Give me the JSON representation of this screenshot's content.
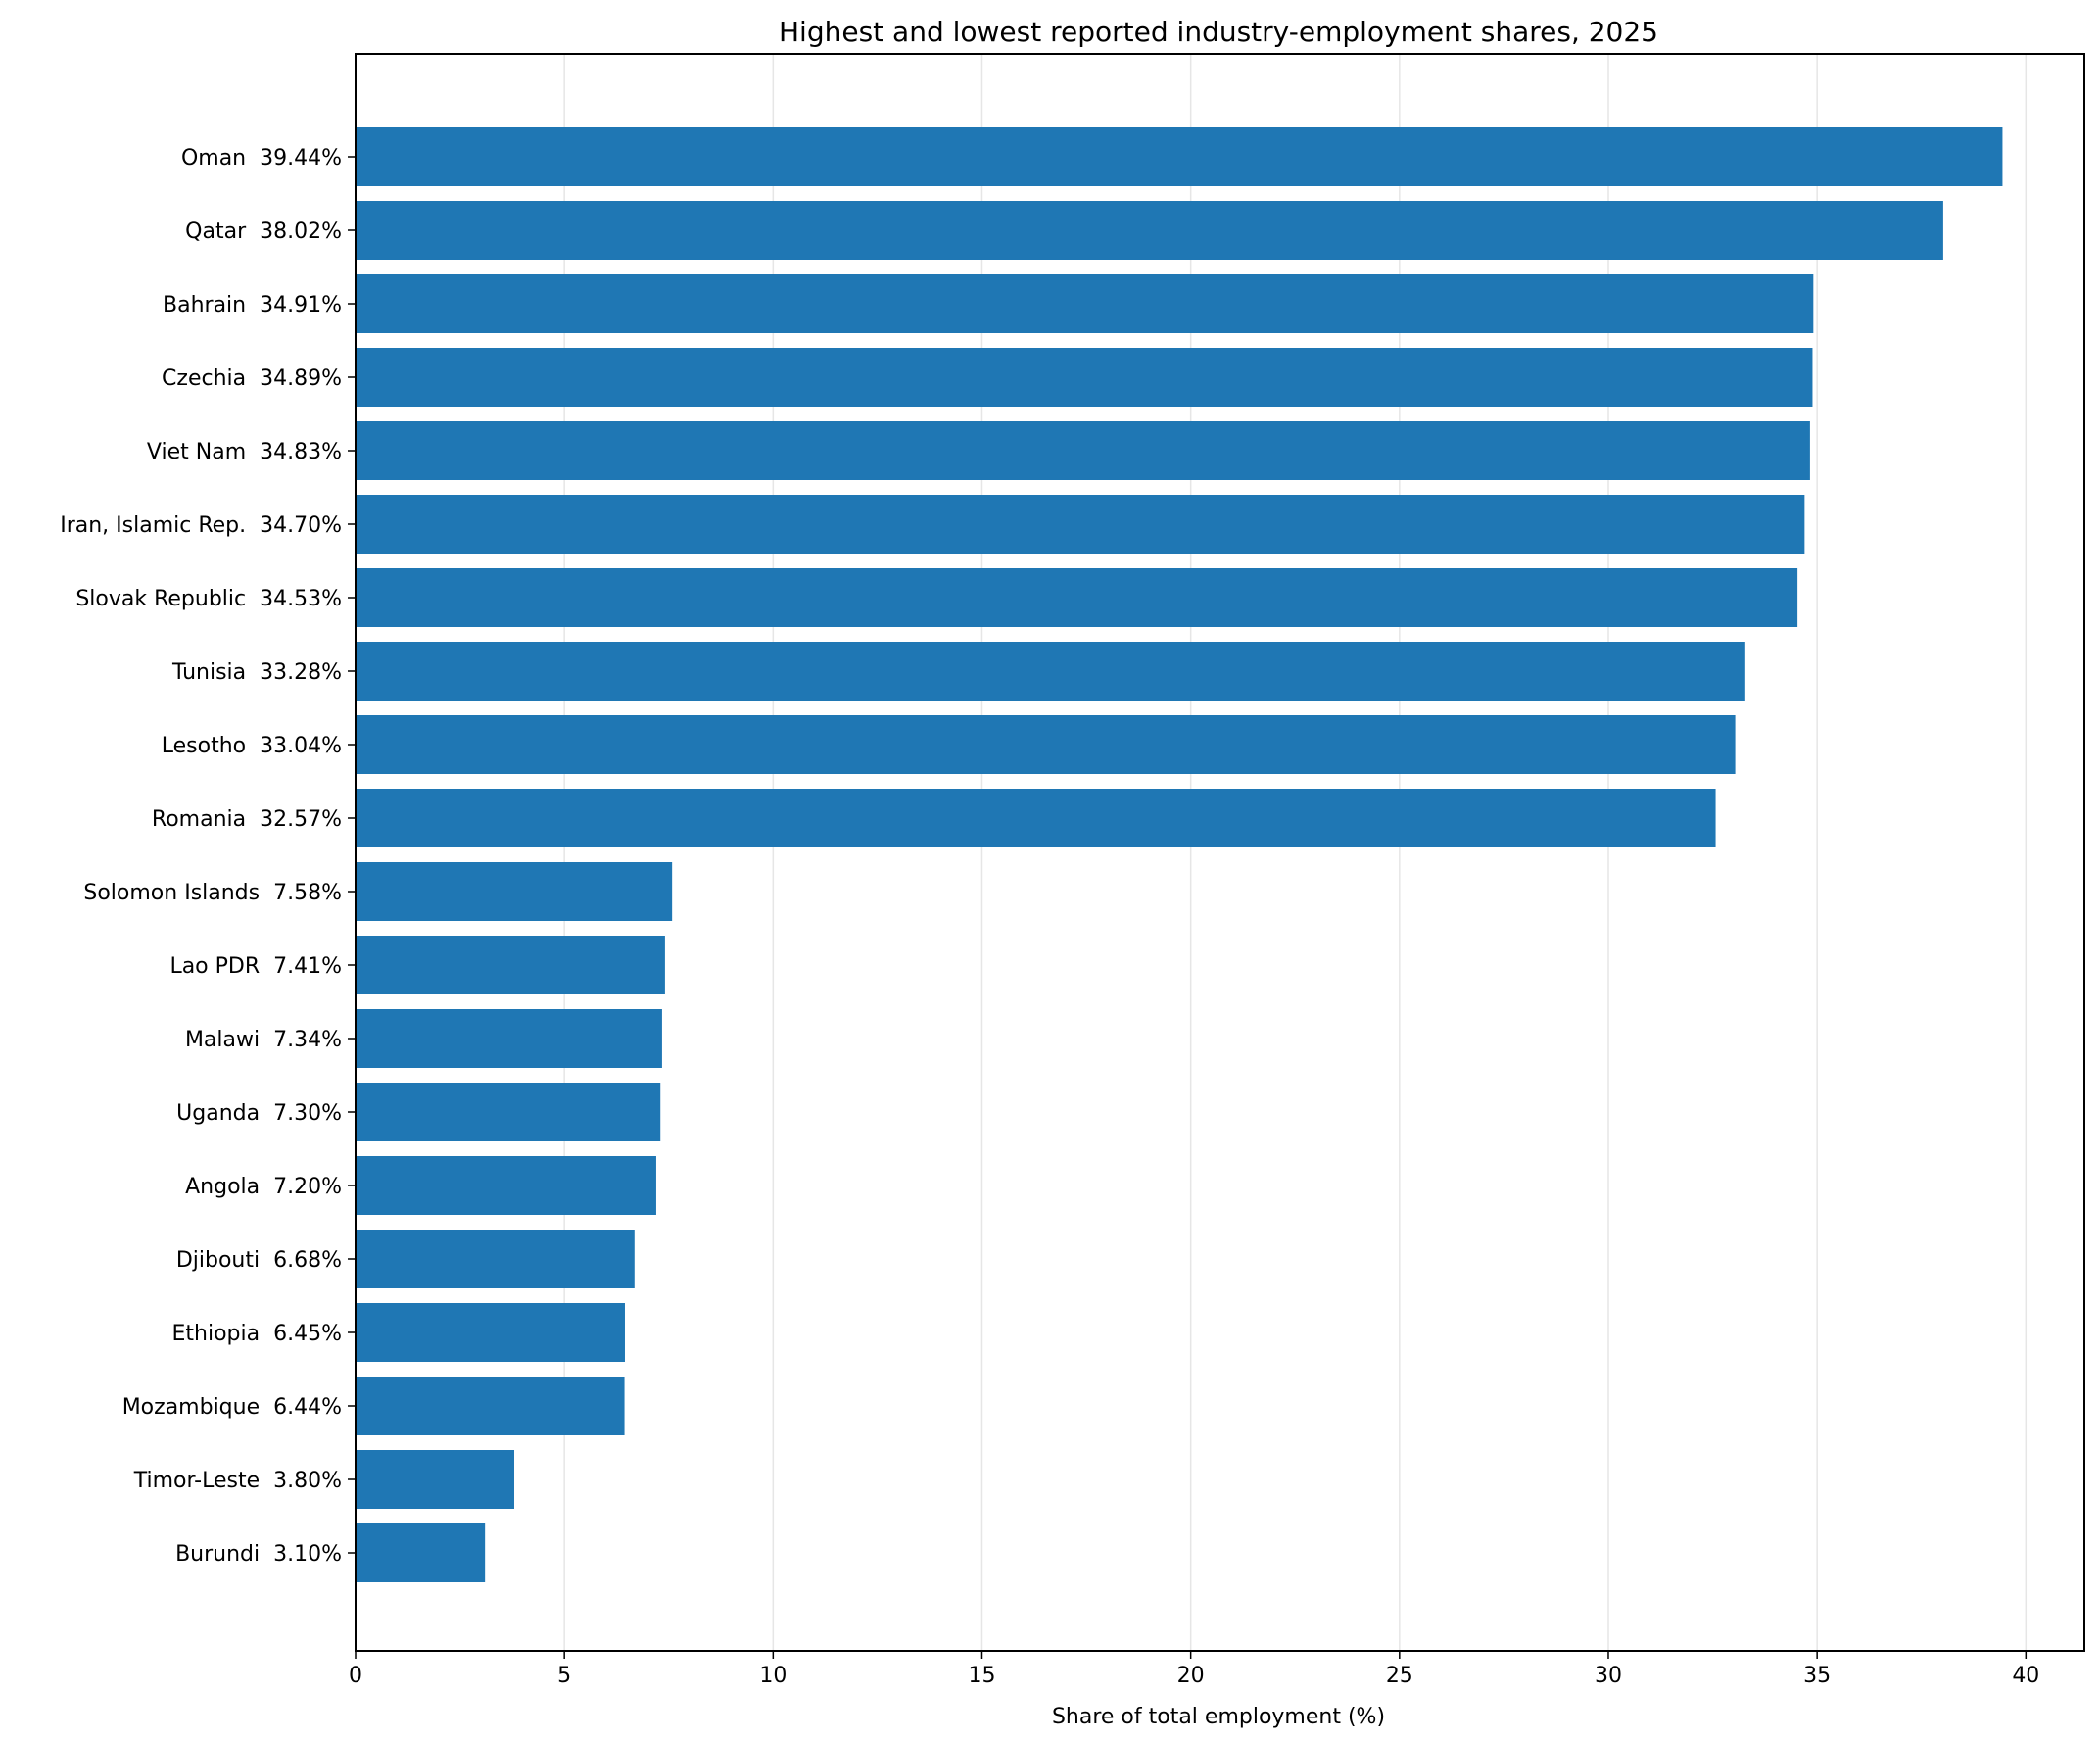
{
  "chart_data": {
    "type": "bar",
    "orientation": "horizontal",
    "title": "Highest and lowest reported industry-employment shares, 2025",
    "xlabel": "Share of total employment (%)",
    "ylabel": "",
    "xlim": [
      0,
      41.4
    ],
    "xticks": [
      0,
      5,
      10,
      15,
      20,
      25,
      30,
      35,
      40
    ],
    "grid": "vertical",
    "bar_color": "#1f77b4",
    "categories": [
      "Oman  39.44%",
      "Qatar  38.02%",
      "Bahrain  34.91%",
      "Czechia  34.89%",
      "Viet Nam  34.83%",
      "Iran, Islamic Rep.  34.70%",
      "Slovak Republic  34.53%",
      "Tunisia  33.28%",
      "Lesotho  33.04%",
      "Romania  32.57%",
      "Solomon Islands  7.58%",
      "Lao PDR  7.41%",
      "Malawi  7.34%",
      "Uganda  7.30%",
      "Angola  7.20%",
      "Djibouti  6.68%",
      "Ethiopia  6.45%",
      "Mozambique  6.44%",
      "Timor-Leste  3.80%",
      "Burundi  3.10%"
    ],
    "values": [
      39.44,
      38.02,
      34.91,
      34.89,
      34.83,
      34.7,
      34.53,
      33.28,
      33.04,
      32.57,
      7.58,
      7.41,
      7.34,
      7.3,
      7.2,
      6.68,
      6.45,
      6.44,
      3.8,
      3.1
    ]
  }
}
